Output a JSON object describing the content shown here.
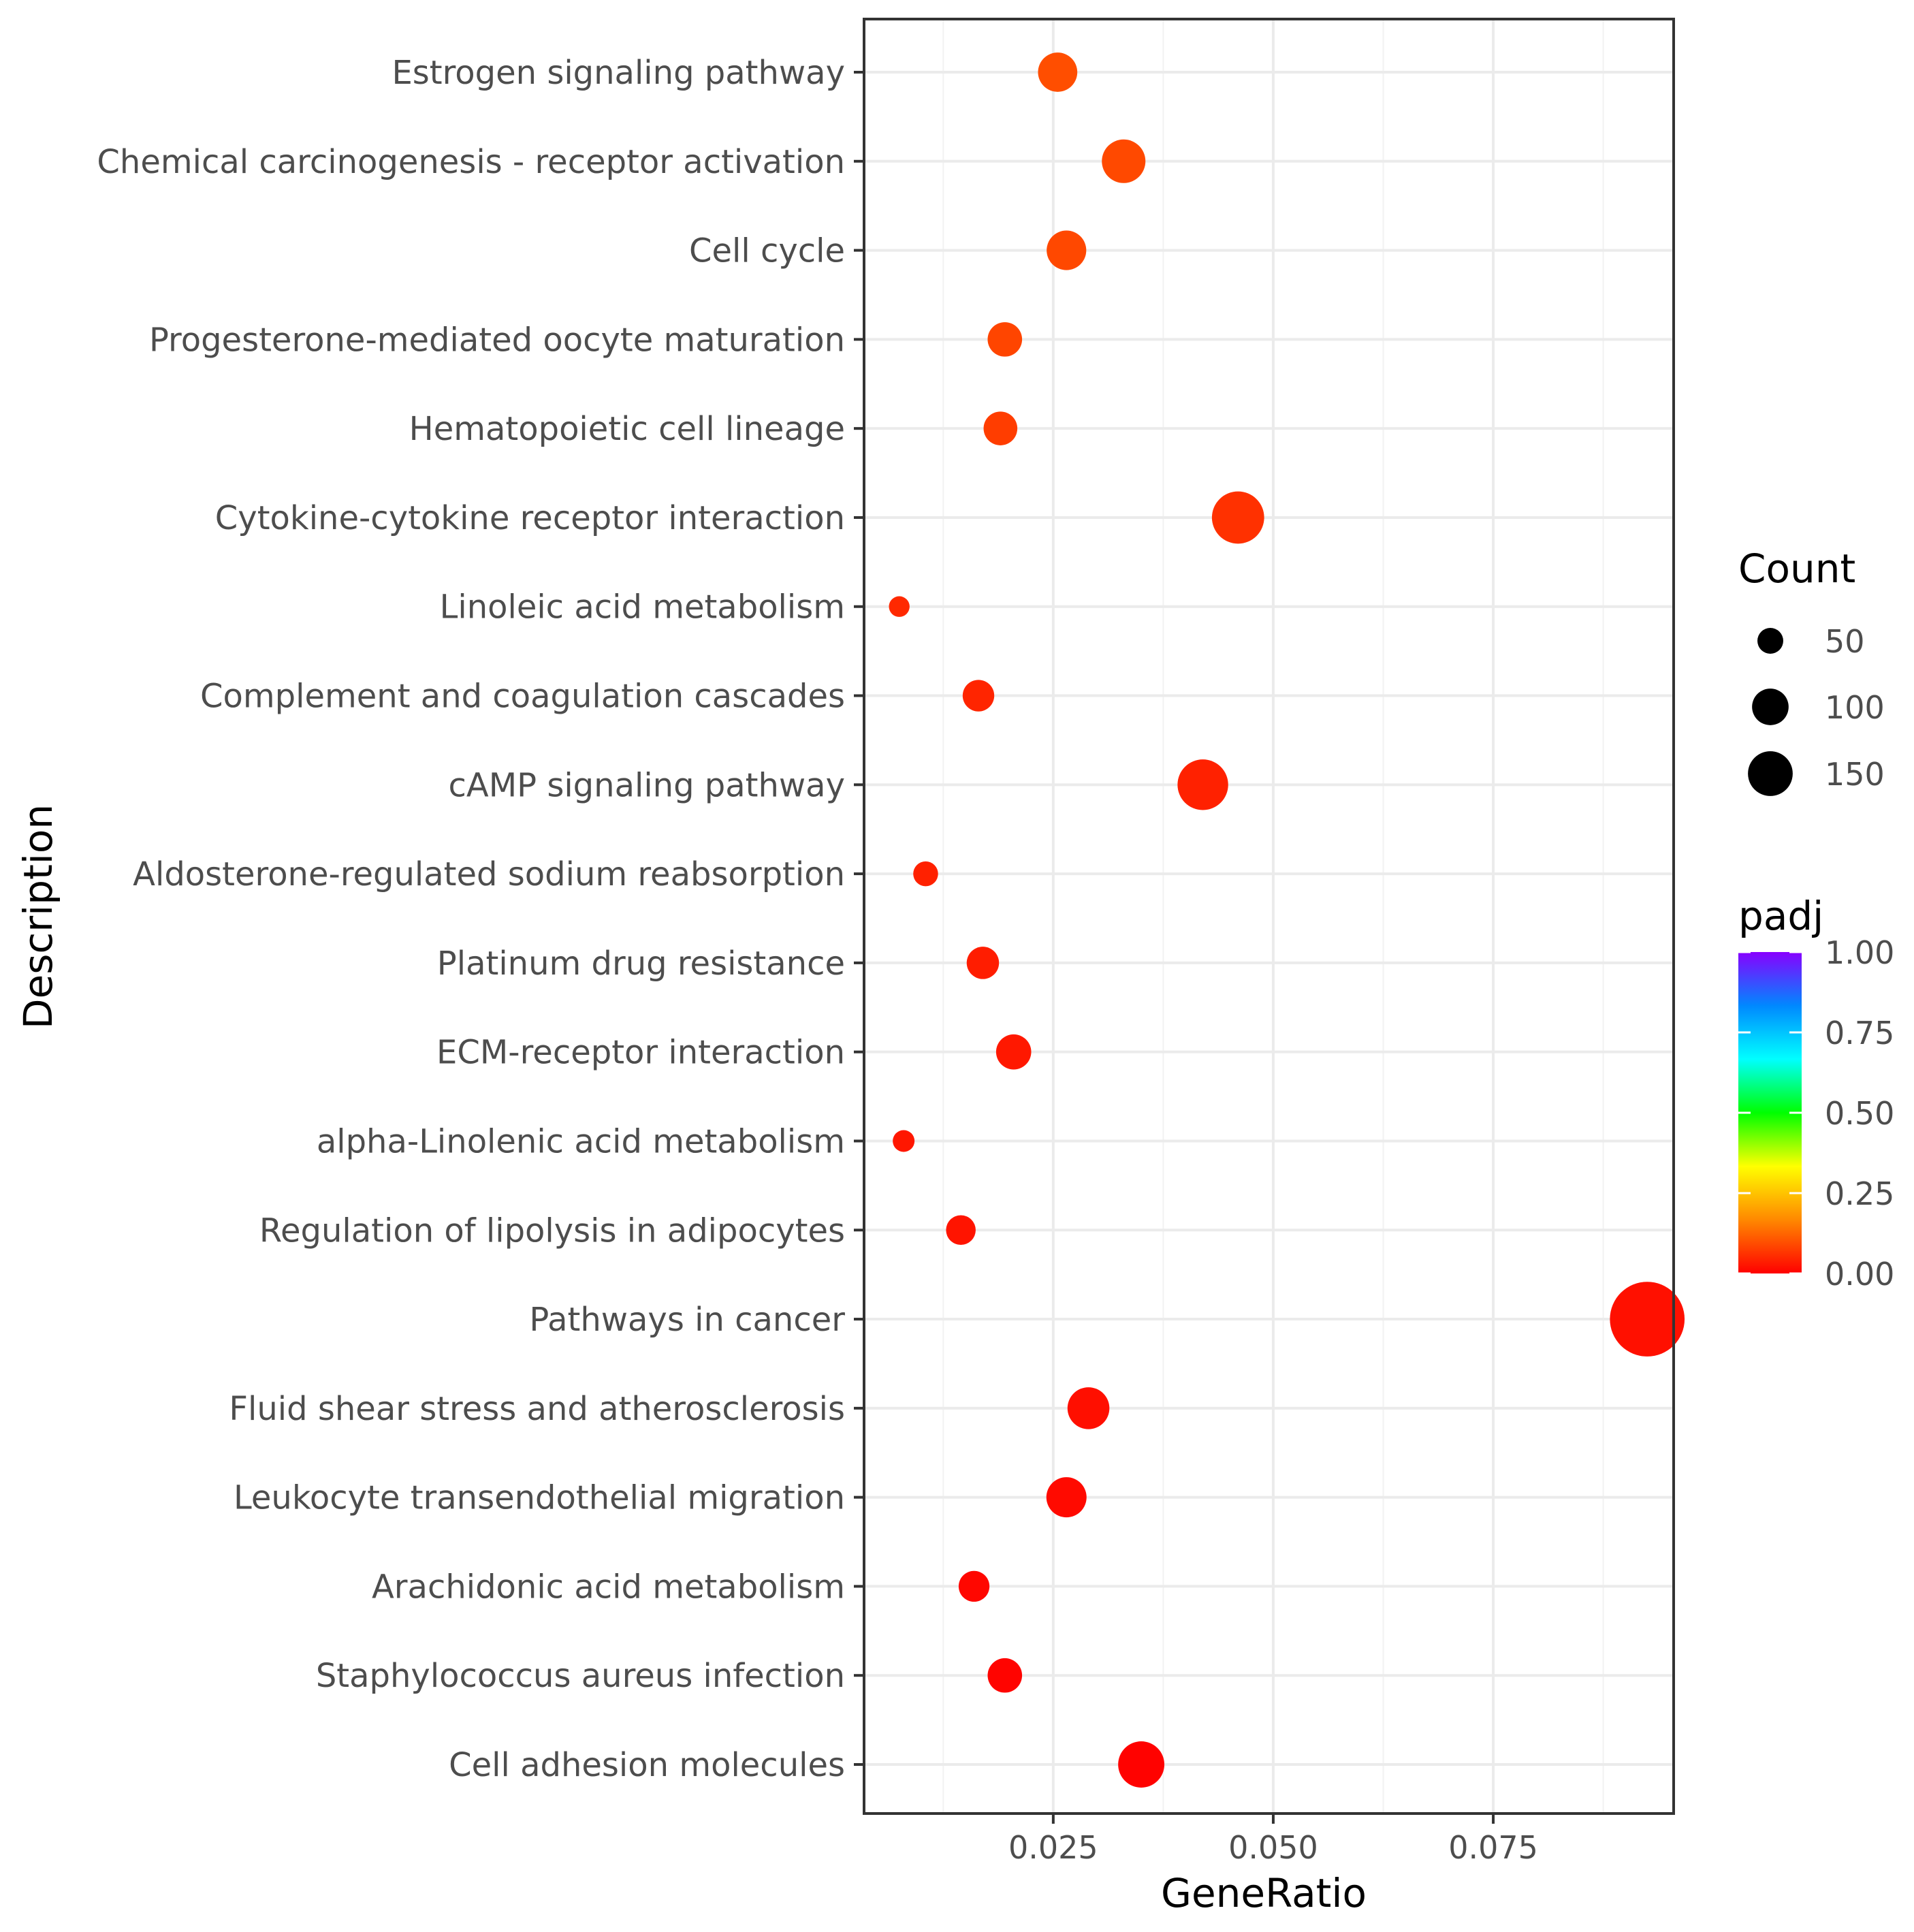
{
  "chart_data": {
    "type": "scatter",
    "xlabel": "GeneRatio",
    "ylabel": "Description",
    "xlim": [
      0.0035,
      0.0955
    ],
    "xticks": [
      0.025,
      0.05,
      0.075
    ],
    "xtick_labels": [
      "0.025",
      "0.050",
      "0.075"
    ],
    "grid": true,
    "legend_position": "right",
    "categories": [
      "Estrogen signaling pathway",
      "Chemical carcinogenesis - receptor activation",
      "Cell cycle",
      "Progesterone-mediated oocyte maturation",
      "Hematopoietic cell lineage",
      "Cytokine-cytokine receptor interaction",
      "Linoleic acid metabolism",
      "Complement and coagulation cascades",
      "cAMP signaling pathway",
      "Aldosterone-regulated sodium reabsorption",
      "Platinum drug resistance",
      "ECM-receptor interaction",
      "alpha-Linolenic acid metabolism",
      "Regulation of lipolysis in adipocytes",
      "Pathways in cancer",
      "Fluid shear stress and atherosclerosis",
      "Leukocyte transendothelial migration",
      "Arachidonic acid metabolism",
      "Staphylococcus aureus infection",
      "Cell adhesion molecules"
    ],
    "points": [
      {
        "description": "Estrogen signaling pathway",
        "gene_ratio": 0.0255,
        "count": 65,
        "padj": 0.095
      },
      {
        "description": "Chemical carcinogenesis - receptor activation",
        "gene_ratio": 0.033,
        "count": 80,
        "padj": 0.09
      },
      {
        "description": "Cell cycle",
        "gene_ratio": 0.0265,
        "count": 66,
        "padj": 0.088
      },
      {
        "description": "Progesterone-mediated oocyte maturation",
        "gene_ratio": 0.0195,
        "count": 50,
        "padj": 0.085
      },
      {
        "description": "Hematopoietic cell lineage",
        "gene_ratio": 0.019,
        "count": 48,
        "padj": 0.075
      },
      {
        "description": "Cytokine-cytokine receptor interaction",
        "gene_ratio": 0.046,
        "count": 115,
        "padj": 0.06
      },
      {
        "description": "Linoleic acid metabolism",
        "gene_ratio": 0.0075,
        "count": 18,
        "padj": 0.05
      },
      {
        "description": "Complement and coagulation cascades",
        "gene_ratio": 0.0165,
        "count": 42,
        "padj": 0.045
      },
      {
        "description": "cAMP signaling pathway",
        "gene_ratio": 0.042,
        "count": 108,
        "padj": 0.04
      },
      {
        "description": "Aldosterone-regulated sodium reabsorption",
        "gene_ratio": 0.0105,
        "count": 26,
        "padj": 0.04
      },
      {
        "description": "Platinum drug resistance",
        "gene_ratio": 0.017,
        "count": 44,
        "padj": 0.035
      },
      {
        "description": "ECM-receptor interaction",
        "gene_ratio": 0.0205,
        "count": 52,
        "padj": 0.03
      },
      {
        "description": "alpha-Linolenic acid metabolism",
        "gene_ratio": 0.008,
        "count": 20,
        "padj": 0.028
      },
      {
        "description": "Regulation of lipolysis in adipocytes",
        "gene_ratio": 0.0145,
        "count": 37,
        "padj": 0.025
      },
      {
        "description": "Pathways in cancer",
        "gene_ratio": 0.0925,
        "count": 235,
        "padj": 0.02
      },
      {
        "description": "Fluid shear stress and atherosclerosis",
        "gene_ratio": 0.029,
        "count": 74,
        "padj": 0.018
      },
      {
        "description": "Leukocyte transendothelial migration",
        "gene_ratio": 0.0265,
        "count": 68,
        "padj": 0.012
      },
      {
        "description": "Arachidonic acid metabolism",
        "gene_ratio": 0.016,
        "count": 40,
        "padj": 0.008
      },
      {
        "description": "Staphylococcus aureus infection",
        "gene_ratio": 0.0195,
        "count": 50,
        "padj": 0.005
      },
      {
        "description": "Cell adhesion molecules",
        "gene_ratio": 0.035,
        "count": 90,
        "padj": 0.002
      }
    ],
    "size_legend": {
      "title": "Count",
      "entries": [
        {
          "label": "50",
          "value": 50
        },
        {
          "label": "100",
          "value": 100
        },
        {
          "label": "150",
          "value": 150
        }
      ]
    },
    "color_legend": {
      "title": "padj",
      "range": [
        0.0,
        1.0
      ],
      "ticks": [
        {
          "label": "1.00",
          "value": 1.0
        },
        {
          "label": "0.75",
          "value": 0.75
        },
        {
          "label": "0.50",
          "value": 0.5
        },
        {
          "label": "0.25",
          "value": 0.25
        },
        {
          "label": "0.00",
          "value": 0.0
        }
      ],
      "colors": [
        "#ff0000",
        "#ff8800",
        "#ffff00",
        "#00ff00",
        "#00ffff",
        "#0088ff",
        "#8800ff"
      ]
    }
  }
}
